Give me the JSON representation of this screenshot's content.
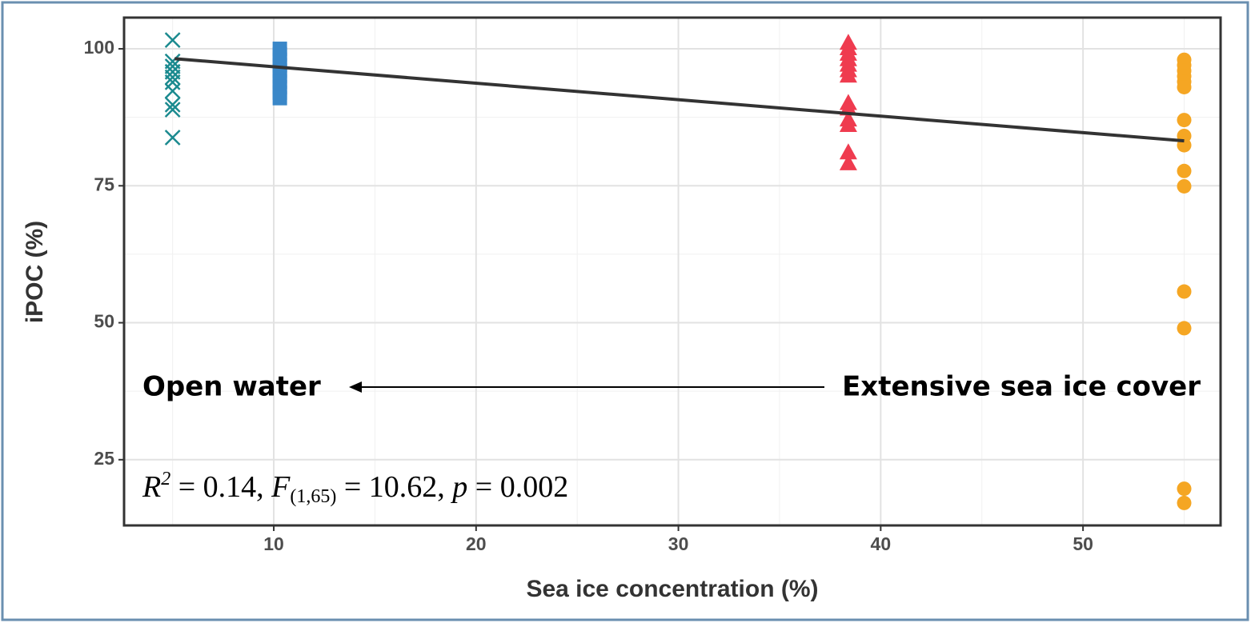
{
  "chart_data": {
    "type": "scatter",
    "x_label": "Sea ice concentration (%)",
    "y_label": "iPOC (%)",
    "xlim": [
      2.6,
      56.8
    ],
    "ylim": [
      13.0,
      105.7
    ],
    "xticks": [
      10,
      20,
      30,
      40,
      50
    ],
    "yticks": [
      25,
      50,
      75,
      100
    ],
    "minor_xticks": [
      5,
      15,
      25,
      35,
      45,
      55
    ],
    "minor_yticks": [
      37.5,
      62.5,
      87.5
    ],
    "grid": true,
    "series": [
      {
        "marker": "x",
        "color": "#1b8a8f",
        "x": [
          5,
          5,
          5,
          5,
          5,
          5,
          5,
          5,
          5,
          5
        ],
        "values": [
          101.6,
          97.7,
          96.8,
          95.8,
          94.8,
          93.9,
          92.3,
          89.8,
          88.9,
          83.8
        ]
      },
      {
        "marker": "square",
        "color": "#3a87c8",
        "x": [
          10.3,
          10.3,
          10.3,
          10.3,
          10.3,
          10.3,
          10.3,
          10.3,
          10.3,
          10.3
        ],
        "values": [
          100,
          99,
          98,
          97,
          96,
          95,
          94,
          93,
          92,
          91
        ]
      },
      {
        "marker": "triangle",
        "color": "#ef3b4f",
        "x": [
          38.4,
          38.4,
          38.4,
          38.4,
          38.4,
          38.4,
          38.4,
          38.4,
          38.4,
          38.4,
          38.4,
          38.4,
          38.4
        ],
        "values": [
          101,
          100,
          99,
          98,
          97,
          96,
          95,
          90,
          89,
          87,
          86,
          81,
          79
        ]
      },
      {
        "marker": "circle",
        "color": "#f5a623",
        "x": [
          55,
          55,
          55,
          55,
          55,
          55,
          55,
          55,
          55,
          55,
          55,
          55,
          55,
          55,
          55
        ],
        "values": [
          98,
          97,
          96,
          95,
          94,
          93,
          87,
          84.1,
          82.4,
          77.7,
          74.9,
          55.7,
          49,
          19.7,
          17.1
        ]
      }
    ],
    "trend": {
      "color": "#333333",
      "x": [
        5.1,
        55
      ],
      "values": [
        98.2,
        83.2
      ]
    },
    "annotations": [
      "Open water",
      "Extensive sea ice cover"
    ],
    "stats": [
      "R",
      "2",
      " = 0.14, ",
      "F",
      "(1,65)",
      " = 10.62, ",
      "p",
      " = 0.002"
    ]
  }
}
